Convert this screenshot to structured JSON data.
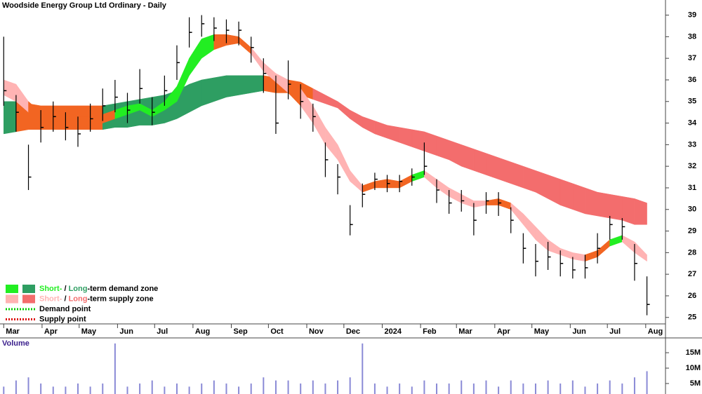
{
  "chart_data": {
    "type": "candlestick",
    "title": "Woodside Energy Group Ltd Ordinary - Daily",
    "x": [
      0,
      10,
      20,
      30,
      40,
      50,
      60,
      70,
      80,
      90,
      100,
      110,
      120,
      130,
      140,
      150,
      160,
      170,
      180,
      190,
      200,
      210,
      220,
      230,
      240,
      250,
      260,
      270,
      280,
      290,
      300,
      310,
      320,
      330,
      340,
      350,
      360,
      370,
      380,
      390,
      400,
      410,
      420,
      430,
      440,
      450,
      460,
      470,
      480,
      490,
      500,
      510,
      520
    ],
    "close": [
      35.5,
      34.5,
      31.5,
      33.8,
      34.3,
      33.8,
      33.5,
      34.2,
      34.8,
      35.2,
      34.6,
      35.6,
      34.5,
      35.5,
      36.8,
      38.2,
      38.6,
      38.4,
      38.3,
      38.3,
      37.5,
      36.3,
      34.0,
      35.8,
      35.0,
      34.3,
      32.3,
      31.5,
      29.3,
      30.7,
      31.4,
      31.2,
      31.3,
      31.5,
      32.0,
      30.9,
      30.3,
      30.4,
      29.5,
      30.4,
      30.3,
      29.5,
      28.2,
      27.6,
      27.8,
      27.5,
      27.2,
      27.3,
      28.2,
      29.3,
      29.2,
      27.5,
      25.6
    ],
    "high": [
      38.0,
      35.3,
      33.0,
      34.6,
      35.0,
      34.5,
      34.3,
      34.9,
      35.6,
      36.0,
      35.4,
      36.5,
      35.2,
      36.2,
      37.6,
      38.9,
      39.0,
      38.9,
      38.8,
      38.7,
      38.0,
      37.0,
      36.2,
      36.9,
      35.8,
      34.9,
      33.1,
      32.1,
      30.2,
      31.2,
      31.7,
      31.6,
      31.6,
      31.9,
      33.1,
      31.4,
      30.9,
      30.9,
      30.3,
      30.8,
      30.8,
      30.1,
      28.9,
      28.4,
      28.5,
      28.1,
      27.8,
      27.9,
      28.9,
      29.7,
      29.6,
      28.4,
      26.9
    ],
    "low": [
      34.8,
      33.6,
      30.9,
      33.1,
      33.6,
      33.2,
      32.9,
      33.6,
      34.1,
      34.5,
      34.0,
      34.9,
      33.9,
      34.8,
      36.0,
      37.5,
      38.0,
      37.8,
      37.7,
      37.6,
      36.8,
      35.4,
      33.5,
      35.1,
      34.2,
      33.6,
      31.5,
      30.7,
      28.8,
      30.1,
      30.9,
      30.8,
      30.8,
      31.1,
      31.6,
      30.3,
      29.8,
      29.9,
      28.8,
      29.8,
      29.7,
      28.9,
      27.5,
      26.9,
      27.2,
      26.9,
      26.8,
      26.8,
      27.5,
      28.6,
      28.6,
      26.7,
      25.1
    ],
    "color": "#000000",
    "xlim": [
      -3,
      535
    ],
    "xticks": [
      {
        "value": 0,
        "label": "Mar"
      },
      {
        "value": 31,
        "label": "Apr"
      },
      {
        "value": 61,
        "label": "May"
      },
      {
        "value": 92,
        "label": "Jun"
      },
      {
        "value": 122,
        "label": "Jul"
      },
      {
        "value": 153,
        "label": "Aug"
      },
      {
        "value": 184,
        "label": "Sep"
      },
      {
        "value": 214,
        "label": "Oct"
      },
      {
        "value": 245,
        "label": "Nov"
      },
      {
        "value": 275,
        "label": "Dec"
      },
      {
        "value": 306,
        "label": "2024"
      },
      {
        "value": 337,
        "label": "Feb"
      },
      {
        "value": 366,
        "label": "Mar"
      },
      {
        "value": 397,
        "label": "Apr"
      },
      {
        "value": 427,
        "label": "May"
      },
      {
        "value": 458,
        "label": "Jun"
      },
      {
        "value": 488,
        "label": "Jul"
      },
      {
        "value": 519,
        "label": "Aug"
      }
    ],
    "ylim": [
      24.7,
      39.7
    ],
    "yticks": [
      25,
      26,
      27,
      28,
      29,
      30,
      31,
      32,
      33,
      34,
      35,
      36,
      37,
      38,
      39
    ],
    "long_term_zone": {
      "upper": [
        35.0,
        35.0,
        34.9,
        34.8,
        34.8,
        34.8,
        34.8,
        34.8,
        34.8,
        34.9,
        35.0,
        35.1,
        35.2,
        35.3,
        35.5,
        35.8,
        36.0,
        36.1,
        36.2,
        36.2,
        36.2,
        36.2,
        36.1,
        36.0,
        35.9,
        35.6,
        35.3,
        35.0,
        34.6,
        34.3,
        34.1,
        33.9,
        33.8,
        33.7,
        33.6,
        33.4,
        33.2,
        33.0,
        32.8,
        32.6,
        32.4,
        32.2,
        32.0,
        31.8,
        31.6,
        31.4,
        31.2,
        31.0,
        30.8,
        30.7,
        30.6,
        30.5,
        30.3
      ],
      "lower": [
        33.5,
        33.6,
        33.7,
        33.7,
        33.7,
        33.7,
        33.7,
        33.7,
        33.7,
        33.8,
        33.8,
        33.9,
        33.9,
        34.0,
        34.2,
        34.5,
        34.8,
        35.0,
        35.2,
        35.3,
        35.4,
        35.5,
        35.4,
        35.4,
        35.3,
        35.1,
        34.9,
        34.7,
        34.2,
        33.8,
        33.5,
        33.3,
        33.1,
        32.9,
        32.7,
        32.5,
        32.3,
        32.0,
        31.8,
        31.6,
        31.4,
        31.2,
        31.0,
        30.8,
        30.5,
        30.2,
        30.0,
        29.8,
        29.7,
        29.6,
        29.5,
        29.3,
        29.3
      ],
      "colors": [
        "#2e9e62",
        "#f26522",
        "#f26522",
        "#f26522",
        "#f26522",
        "#f26522",
        "#f26522",
        "#f26522",
        "#2e9e62",
        "#2e9e62",
        "#2e9e62",
        "#2e9e62",
        "#2e9e62",
        "#2e9e62",
        "#2e9e62",
        "#2e9e62",
        "#2e9e62",
        "#2e9e62",
        "#2e9e62",
        "#2e9e62",
        "#2e9e62",
        "#f26522",
        "#f26522",
        "#f26522",
        "#f26522",
        "#f36d6d",
        "#f36d6d",
        "#f36d6d",
        "#f36d6d",
        "#f36d6d",
        "#f36d6d",
        "#f36d6d",
        "#f36d6d",
        "#f36d6d",
        "#f36d6d",
        "#f36d6d",
        "#f36d6d",
        "#f36d6d",
        "#f36d6d",
        "#f36d6d",
        "#f36d6d",
        "#f36d6d",
        "#f36d6d",
        "#f36d6d",
        "#f36d6d",
        "#f36d6d",
        "#f36d6d",
        "#f36d6d",
        "#f36d6d",
        "#f36d6d",
        "#f36d6d",
        "#f36d6d"
      ]
    },
    "short_term_zone": {
      "upper": [
        36.0,
        35.8,
        35.0,
        34.5,
        34.6,
        34.5,
        34.3,
        34.3,
        34.4,
        34.6,
        34.8,
        34.9,
        34.6,
        35.0,
        35.7,
        37.0,
        37.9,
        38.1,
        38.1,
        38.0,
        37.5,
        36.8,
        36.3,
        36.0,
        35.6,
        34.8,
        33.8,
        33.0,
        31.8,
        31.1,
        31.3,
        31.4,
        31.3,
        31.6,
        31.8,
        31.4,
        31.0,
        30.7,
        30.4,
        30.4,
        30.5,
        30.3,
        29.8,
        29.2,
        28.6,
        28.2,
        28.0,
        27.9,
        28.1,
        28.6,
        28.8,
        28.5,
        27.9
      ],
      "lower": [
        35.3,
        35.0,
        34.5,
        34.0,
        34.1,
        34.0,
        33.8,
        33.9,
        34.0,
        34.2,
        34.4,
        34.6,
        34.3,
        34.6,
        35.0,
        36.2,
        37.0,
        37.4,
        37.6,
        37.7,
        37.2,
        36.4,
        35.9,
        35.4,
        34.8,
        34.0,
        33.0,
        32.3,
        31.3,
        30.8,
        31.0,
        31.0,
        31.0,
        31.3,
        31.5,
        31.0,
        30.6,
        30.3,
        30.1,
        30.2,
        30.2,
        30.0,
        29.3,
        28.6,
        28.1,
        27.9,
        27.7,
        27.6,
        27.8,
        28.3,
        28.5,
        28.0,
        27.6
      ],
      "colors": [
        "#ffb3b3",
        "#ffb3b3",
        "#f26522",
        "#f26522",
        "#f26522",
        "#f26522",
        "#f26522",
        "#f26522",
        "#f26522",
        "#22ee22",
        "#22ee22",
        "#22ee22",
        "#22ee22",
        "#22ee22",
        "#22ee22",
        "#22ee22",
        "#22ee22",
        "#f26522",
        "#f26522",
        "#f26522",
        "#ffb3b3",
        "#ffb3b3",
        "#ffb3b3",
        "#f26522",
        "#ffb3b3",
        "#ffb3b3",
        "#ffb3b3",
        "#ffb3b3",
        "#ffb3b3",
        "#f26522",
        "#f26522",
        "#f26522",
        "#f26522",
        "#22ee22",
        "#ffb3b3",
        "#ffb3b3",
        "#ffb3b3",
        "#ffb3b3",
        "#ffb3b3",
        "#f26522",
        "#f26522",
        "#ffb3b3",
        "#ffb3b3",
        "#ffb3b3",
        "#ffb3b3",
        "#ffb3b3",
        "#ffb3b3",
        "#f26522",
        "#f26522",
        "#22ee22",
        "#ffb3b3",
        "#ffb3b3"
      ]
    },
    "legend": [
      {
        "swatches": [
          "#22ee22",
          "#2e9e62"
        ],
        "parts": [
          "Short-",
          " / ",
          "Long",
          "-term demand zone"
        ]
      },
      {
        "swatches": [
          "#ffb3b3",
          "#f36d6d"
        ],
        "parts": [
          "Short-",
          " / ",
          "Long",
          "-term supply zone"
        ]
      },
      {
        "dots": "#00cc00",
        "parts": [
          "Demand point"
        ]
      },
      {
        "dots": "#dd0000",
        "parts": [
          "Supply point"
        ]
      }
    ],
    "volume": {
      "label": "Volume",
      "values": [
        4,
        6,
        7,
        5,
        4,
        4,
        5,
        4,
        5,
        18,
        4,
        5,
        6,
        4,
        5,
        4,
        5,
        6,
        5,
        4,
        5,
        7,
        6,
        6,
        5,
        6,
        5,
        6,
        7,
        18,
        5,
        4,
        5,
        4,
        6,
        5,
        5,
        6,
        5,
        6,
        4,
        6,
        5,
        5,
        6,
        5,
        6,
        4,
        5,
        6,
        5,
        7,
        9
      ],
      "color": "#8a8ad6",
      "ylim": [
        1.6,
        19.8
      ],
      "yticks": [
        {
          "value": 5,
          "label": "5M"
        },
        {
          "value": 10,
          "label": "10M"
        },
        {
          "value": 15,
          "label": "15M"
        }
      ]
    }
  }
}
